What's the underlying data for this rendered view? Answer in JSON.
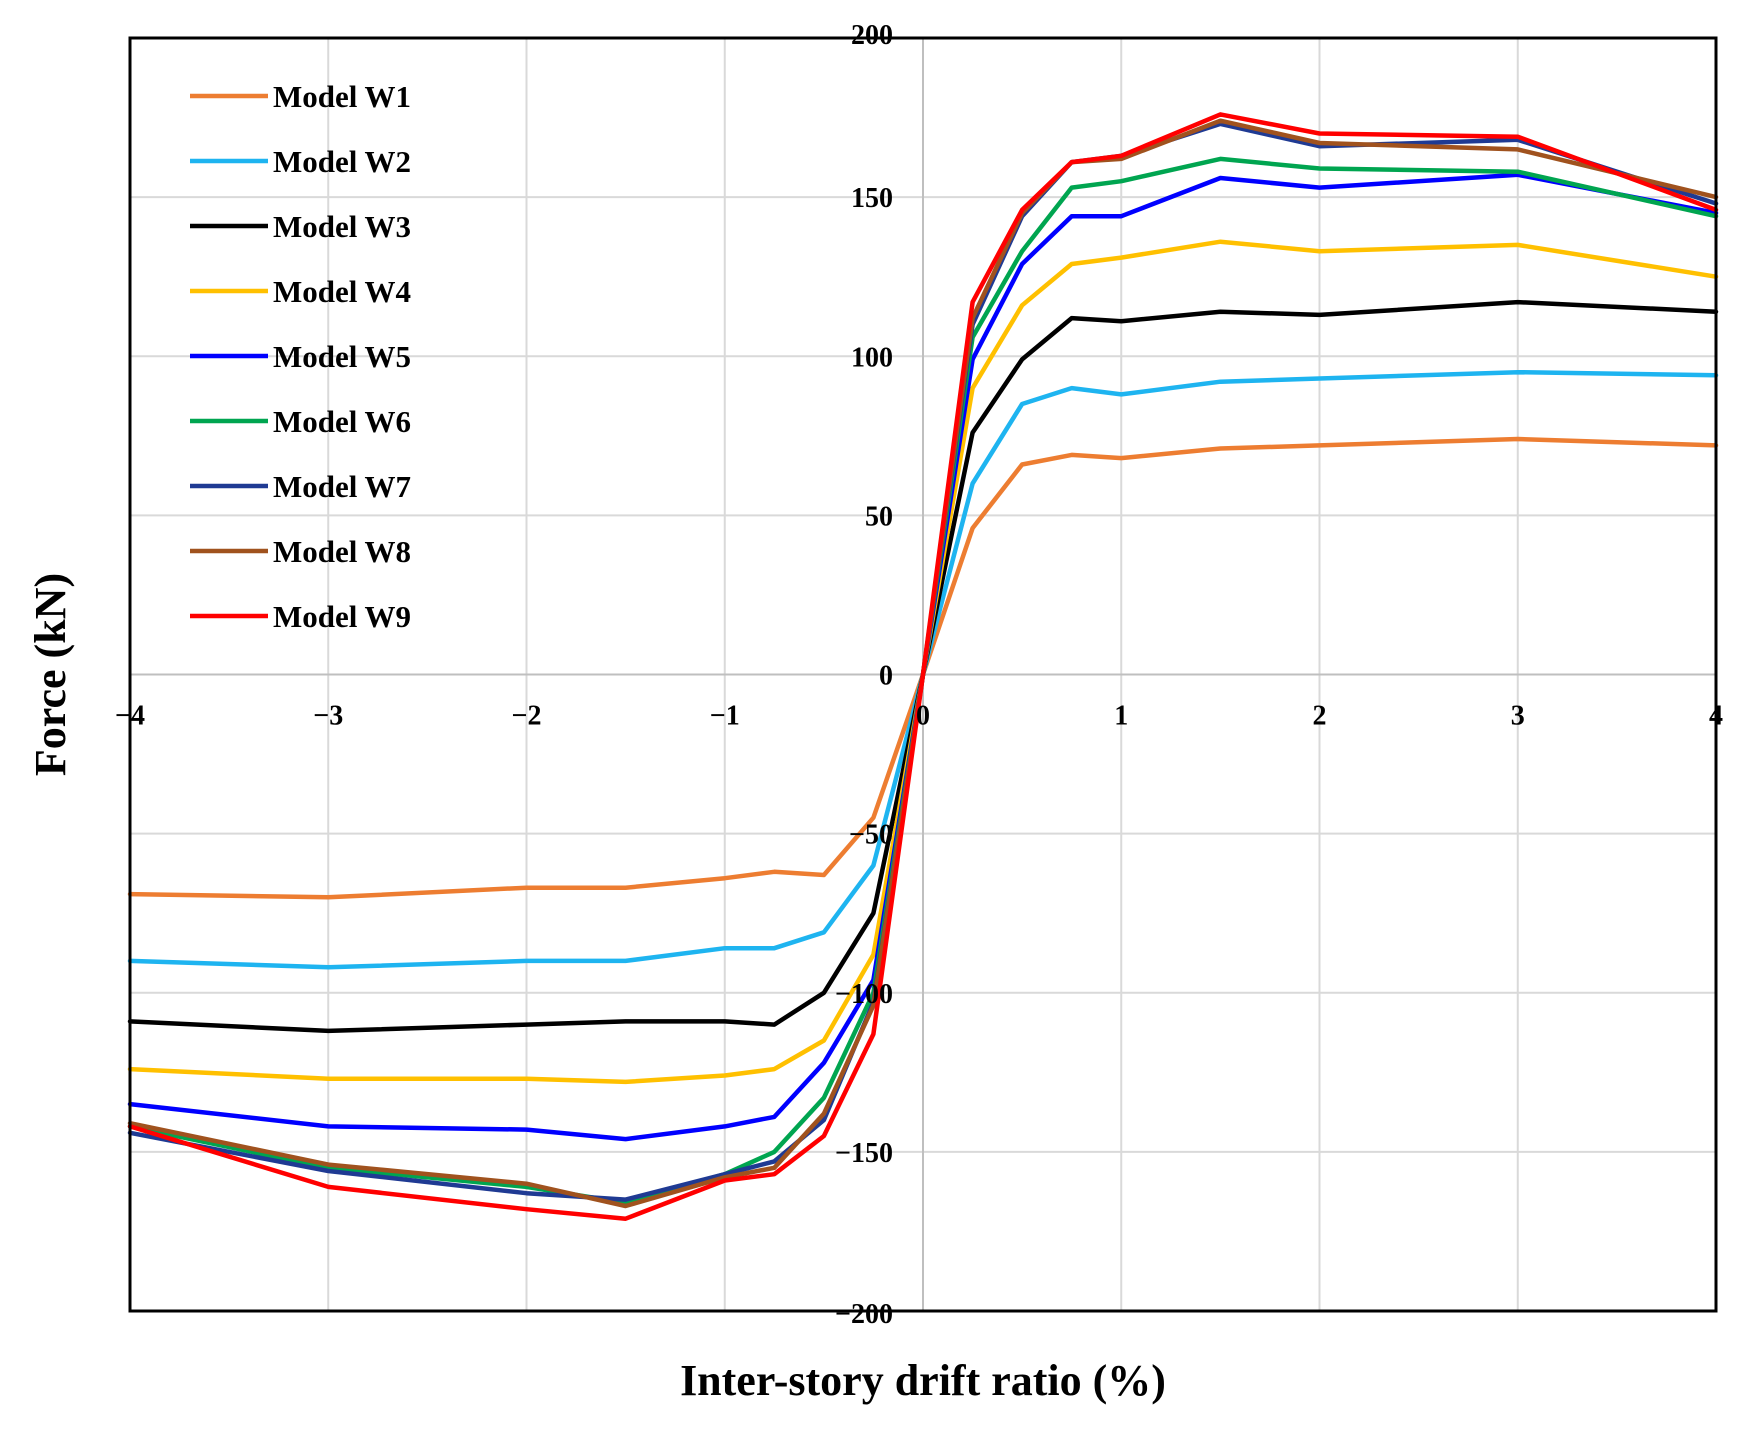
{
  "chart_data": {
    "type": "line",
    "title": "",
    "xlabel": "Inter-story drift ratio (%)",
    "ylabel": "Force (kN)",
    "xlim": [
      -4,
      4
    ],
    "ylim": [
      -200,
      200
    ],
    "xticks": [
      -4,
      -3,
      -2,
      -1,
      0,
      1,
      2,
      3,
      4
    ],
    "yticks": [
      -200,
      -150,
      -100,
      -50,
      0,
      50,
      100,
      150,
      200
    ],
    "x_tick_labels": [
      "−4",
      "−3",
      "−2",
      "−1",
      "0",
      "1",
      "2",
      "3",
      "4"
    ],
    "y_tick_labels": [
      "−200",
      "−150",
      "−100",
      "−50",
      "0",
      "50",
      "100",
      "150",
      "200"
    ],
    "grid": true,
    "legend_position": "top-left",
    "x": [
      -4,
      -3,
      -2,
      -1.5,
      -1,
      -0.75,
      -0.5,
      -0.25,
      0,
      0.25,
      0.5,
      0.75,
      1,
      1.5,
      2,
      3,
      4
    ],
    "series": [
      {
        "name": "Model W1",
        "color": "#ED7D31",
        "values": [
          -69,
          -70,
          -67,
          -67,
          -64,
          -62,
          -63,
          -45,
          0,
          46,
          66,
          69,
          68,
          71,
          72,
          74,
          72
        ]
      },
      {
        "name": "Model W2",
        "color": "#1EB4F0",
        "values": [
          -90,
          -92,
          -90,
          -90,
          -86,
          -86,
          -81,
          -60,
          0,
          60,
          85,
          90,
          88,
          92,
          93,
          95,
          94
        ]
      },
      {
        "name": "Model W3",
        "color": "#000000",
        "values": [
          -109,
          -112,
          -110,
          -109,
          -109,
          -110,
          -100,
          -75,
          0,
          76,
          99,
          112,
          111,
          114,
          113,
          117,
          114
        ]
      },
      {
        "name": "Model W4",
        "color": "#FFC000",
        "values": [
          -124,
          -127,
          -127,
          -128,
          -126,
          -124,
          -115,
          -88,
          0,
          90,
          116,
          129,
          131,
          136,
          133,
          135,
          125
        ]
      },
      {
        "name": "Model W5",
        "color": "#0000FF",
        "values": [
          -135,
          -142,
          -143,
          -146,
          -142,
          -139,
          -122,
          -96,
          0,
          99,
          129,
          144,
          144,
          156,
          153,
          157,
          145
        ]
      },
      {
        "name": "Model W6",
        "color": "#00A550",
        "values": [
          -142,
          -155,
          -161,
          -166,
          -157,
          -150,
          -133,
          -100,
          0,
          106,
          133,
          153,
          155,
          162,
          159,
          158,
          144
        ]
      },
      {
        "name": "Model W7",
        "color": "#1F3A93",
        "values": [
          -144,
          -156,
          -163,
          -165,
          -157,
          -153,
          -140,
          -103,
          0,
          110,
          144,
          161,
          163,
          173,
          166,
          168,
          148
        ]
      },
      {
        "name": "Model W8",
        "color": "#A0521E",
        "values": [
          -141,
          -154,
          -160,
          -167,
          -158,
          -155,
          -138,
          -104,
          0,
          112,
          145,
          161,
          162,
          174,
          167,
          165,
          150
        ]
      },
      {
        "name": "Model W9",
        "color": "#FF0000",
        "values": [
          -142,
          -161,
          -168,
          -171,
          -159,
          -157,
          -145,
          -113,
          0,
          117,
          146,
          161,
          163,
          176,
          170,
          169,
          146
        ]
      }
    ]
  }
}
